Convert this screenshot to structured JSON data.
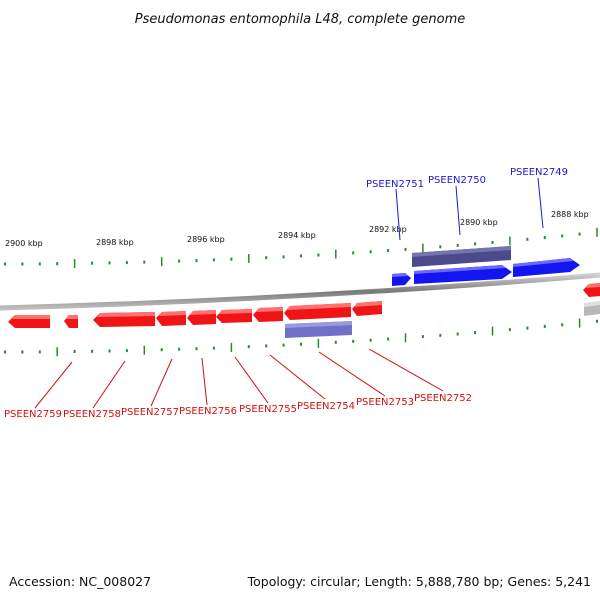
{
  "title": "Pseudomonas entomophila L48, complete genome",
  "colors": {
    "plus_gene": "#1414f0",
    "plus_gene_top": "#5a5aff",
    "minus_gene": "#f01414",
    "minus_gene_top": "#ff6060",
    "product_plus": "#4a4a8c",
    "product_minus": "#7070c8",
    "tick": "#2a8a2a",
    "backbone": "#8a8a8a",
    "plus_label": "#1a1ad0",
    "minus_label": "#d01010"
  },
  "ruler": {
    "labels": [
      "2900 kbp",
      "2898 kbp",
      "2896 kbp",
      "2894 kbp",
      "2892 kbp",
      "2890 kbp",
      "2888 kbp"
    ]
  },
  "plus_genes": [
    "PSEEN2751",
    "PSEEN2750",
    "PSEEN2749"
  ],
  "minus_genes": [
    "PSEEN2759",
    "PSEEN2758",
    "PSEEN2757",
    "PSEEN2756",
    "PSEEN2755",
    "PSEEN2754",
    "PSEEN2753",
    "PSEEN2752"
  ],
  "footer": {
    "accession": "Accession: NC_008027",
    "summary": "Topology: circular; Length: 5,888,780 bp; Genes: 5,241"
  }
}
